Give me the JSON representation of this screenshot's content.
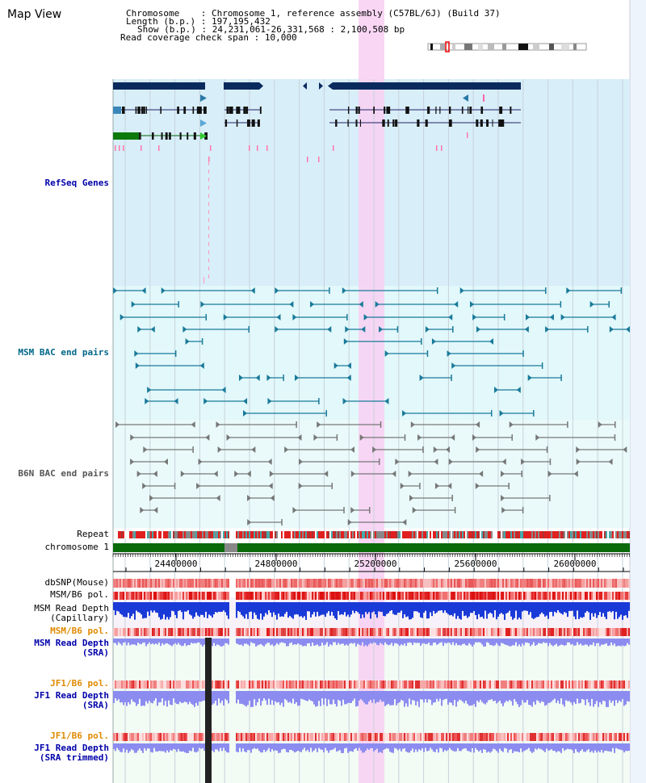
{
  "header": {
    "title": "Map View",
    "chromosome_label": "Chromosome",
    "chromosome_value": "Chromosome 1, reference assembly (C57BL/6J) (Build 37)",
    "length_label": "Length (b.p.)",
    "length_value": "197,195,432",
    "show_label": "Show (b.p.)",
    "show_value": "24,231,061-26,331,568 : 2,100,508 bp",
    "coverage_label": "Read coverage check span",
    "coverage_value": "10,000"
  },
  "tracks": {
    "refseq": "RefSeq Genes",
    "msm_bac": "MSM BAC end pairs",
    "b6n_bac": "B6N BAC end pairs",
    "repeat": "Repeat",
    "chromosome": "chromosome 1",
    "dbsnp": "dbSNP(Mouse)",
    "msm_pol_1": "MSM/B6 pol.",
    "msm_depth_cap_1": "MSM Read Depth",
    "msm_depth_cap_2": "(Capillary)",
    "msm_pol_2": "MSM/B6 pol.",
    "msm_depth_sra_1": "MSM Read Depth",
    "msm_depth_sra_2": "(SRA)",
    "jf1_pol_1": "JF1/B6 pol.",
    "jf1_depth_1": "JF1 Read Depth",
    "jf1_depth_2": "(SRA)",
    "jf1_pol_2": "JF1/B6 pol.",
    "jf1_trim_1": "JF1 Read Depth",
    "jf1_trim_2": "(SRA trimmed)"
  },
  "ruler": {
    "ticks": [
      "24400000",
      "24800000",
      "25200000",
      "25600000",
      "26000000"
    ]
  },
  "colors": {
    "refseq_bg": "#d8eef9",
    "bac_bg": "#e2f8fa",
    "highlight": "#f7d2f3",
    "gene_dark": "#0a2a5e",
    "gene_green": "#0b7a0b",
    "bac_teal": "#1a7a9a",
    "bac_grey": "#777777",
    "chrom_green": "#0a6a0a",
    "depth_blue": "#1a3ad8",
    "depth_light": "#8c8cf0",
    "pol_red": "#e03030"
  }
}
